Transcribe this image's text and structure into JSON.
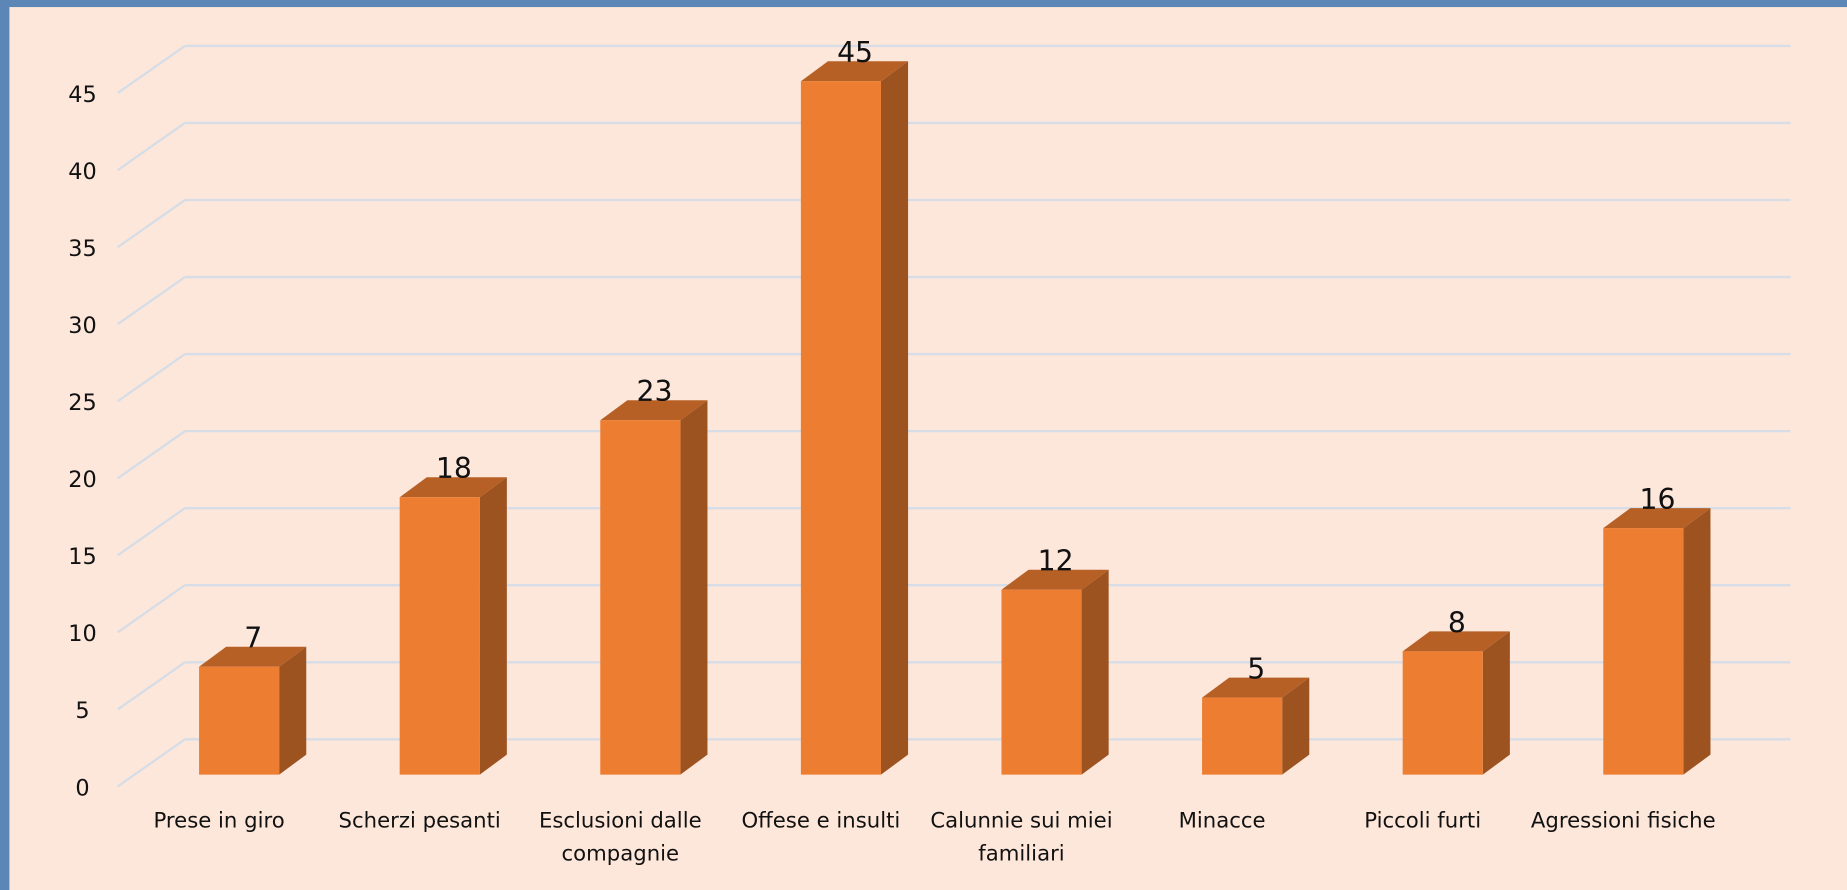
{
  "chart_data": {
    "type": "bar3d",
    "categories": [
      "Prese in giro",
      "Scherzi pesanti",
      "Esclusioni dalle compagnie",
      "Offese e insulti",
      "Calunnie sui miei familiari",
      "Minacce",
      "Piccoli furti",
      "Agressioni fisiche"
    ],
    "values": [
      7,
      18,
      23,
      45,
      12,
      5,
      8,
      16
    ],
    "color": "#ed7d31",
    "ylim": [
      0,
      45
    ],
    "yticks": [
      0,
      5,
      10,
      15,
      20,
      25,
      30,
      35,
      40,
      45
    ],
    "grid": true
  }
}
